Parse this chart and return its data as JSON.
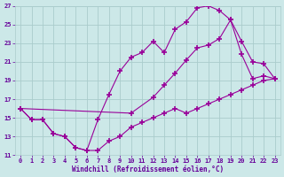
{
  "bg_color": "#cce8e8",
  "grid_color": "#aacccc",
  "line_color": "#990099",
  "marker": "+",
  "marker_size": 4,
  "marker_linewidth": 1.2,
  "xlabel": "Windchill (Refroidissement éolien,°C)",
  "xlabel_color": "#660099",
  "tick_color": "#660099",
  "xlim": [
    -0.5,
    23.5
  ],
  "ylim": [
    11,
    27
  ],
  "yticks": [
    11,
    13,
    15,
    17,
    19,
    21,
    23,
    25,
    27
  ],
  "xticks": [
    0,
    1,
    2,
    3,
    4,
    5,
    6,
    7,
    8,
    9,
    10,
    11,
    12,
    13,
    14,
    15,
    16,
    17,
    18,
    19,
    20,
    21,
    22,
    23
  ],
  "line1_x": [
    0,
    1,
    2,
    3,
    4,
    5,
    6,
    7,
    8,
    9,
    10,
    11,
    12,
    13,
    14,
    15,
    16,
    17,
    18,
    19,
    20,
    21,
    22,
    23
  ],
  "line1_y": [
    16.0,
    14.8,
    14.8,
    13.3,
    13.0,
    11.8,
    11.5,
    11.5,
    12.5,
    13.0,
    14.0,
    14.5,
    15.0,
    15.5,
    16.0,
    15.5,
    16.0,
    16.5,
    17.0,
    17.5,
    18.0,
    18.5,
    19.0,
    19.2
  ],
  "line2_x": [
    0,
    1,
    2,
    3,
    4,
    5,
    6,
    7,
    8,
    9,
    10,
    11,
    12,
    13,
    14,
    15,
    16,
    17,
    18,
    19,
    20,
    21,
    22,
    23
  ],
  "line2_y": [
    16.0,
    14.8,
    14.8,
    13.3,
    13.0,
    11.8,
    11.5,
    14.8,
    17.5,
    20.0,
    21.5,
    22.0,
    23.2,
    22.0,
    24.5,
    25.3,
    26.8,
    27.0,
    26.5,
    25.5,
    21.8,
    19.2,
    19.5,
    19.2
  ],
  "line3_x": [
    0,
    10,
    12,
    13,
    14,
    15,
    16,
    17,
    18,
    19,
    20,
    21,
    22,
    23
  ],
  "line3_y": [
    16.0,
    15.5,
    17.2,
    18.5,
    19.8,
    21.2,
    22.5,
    22.8,
    23.5,
    25.5,
    23.2,
    21.0,
    20.8,
    19.2
  ]
}
